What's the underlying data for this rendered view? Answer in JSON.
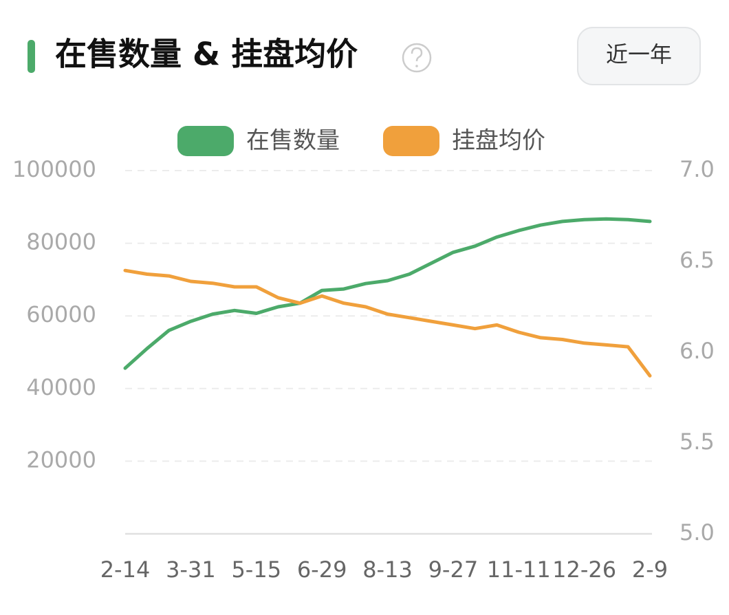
{
  "button_label": "近一年",
  "chart_data": {
    "type": "line",
    "title": "在售数量 & 挂盘均价",
    "categories": [
      "2-14",
      null,
      null,
      "3-31",
      null,
      null,
      "5-15",
      null,
      null,
      "6-29",
      null,
      null,
      "8-13",
      null,
      null,
      "9-27",
      null,
      null,
      "11-11",
      null,
      null,
      "12-26",
      null,
      null,
      "2-9"
    ],
    "series": [
      {
        "name": "在售数量",
        "color": "#4caa6a",
        "values": [
          45600,
          51000,
          56000,
          58500,
          60500,
          61500,
          60700,
          62500,
          63500,
          67000,
          67400,
          68900,
          69700,
          71500,
          74500,
          77500,
          79200,
          81700,
          83500,
          85000,
          86000,
          86500,
          86700,
          86500,
          86000
        ]
      },
      {
        "name": "挂盘均价",
        "color": "#f0a03c",
        "axis": "y2",
        "values": [
          6.45,
          6.43,
          6.42,
          6.39,
          6.38,
          6.36,
          6.36,
          6.3,
          6.27,
          6.31,
          6.27,
          6.25,
          6.21,
          6.19,
          6.17,
          6.15,
          6.13,
          6.15,
          6.11,
          6.08,
          6.07,
          6.05,
          6.04,
          6.03,
          5.87
        ]
      }
    ],
    "ylim": [
      0,
      100000
    ],
    "yticks": [
      20000,
      40000,
      60000,
      80000,
      100000
    ],
    "y2lim": [
      5,
      7
    ],
    "y2ticks": [
      {
        "value": 5,
        "label": "5.0"
      },
      5.5,
      {
        "value": 6,
        "label": "6.0"
      },
      6.5,
      {
        "value": 7,
        "label": "7.0"
      }
    ],
    "grid": true,
    "legend": "top"
  }
}
